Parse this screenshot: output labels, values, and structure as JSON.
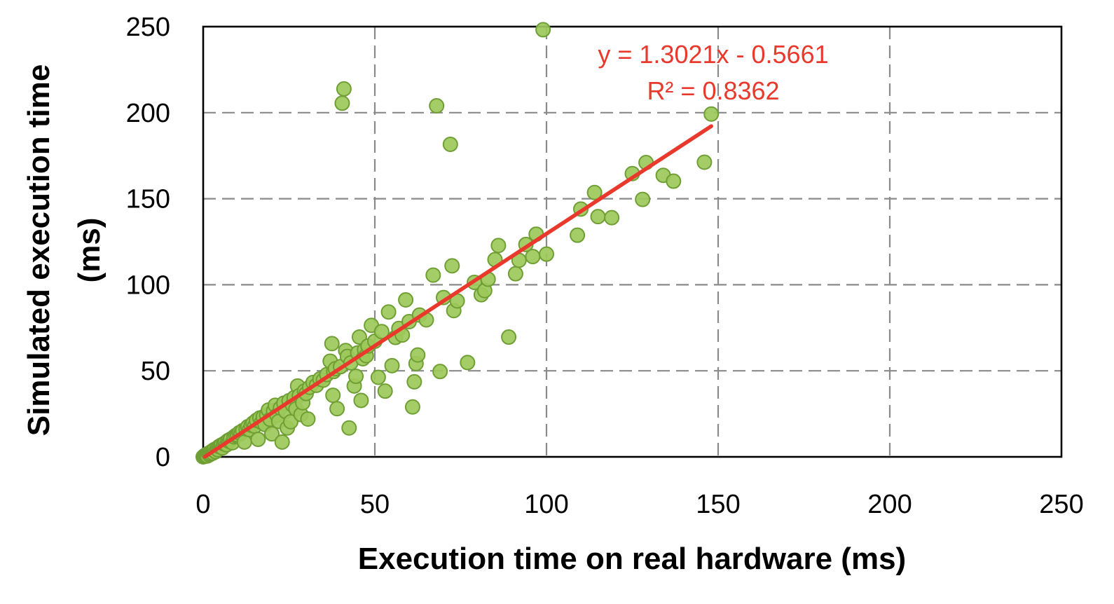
{
  "chart_data": {
    "type": "scatter",
    "xlabel": "Execution time on real hardware (ms)",
    "ylabel_lines": [
      "Simulated execution time",
      "(ms)"
    ],
    "xlim": [
      0,
      250
    ],
    "ylim": [
      0,
      250
    ],
    "x_ticks": [
      0,
      50,
      100,
      150,
      200,
      250
    ],
    "y_ticks": [
      0,
      50,
      100,
      150,
      200,
      250
    ],
    "x_tick_labels": [
      "0",
      "50",
      "100",
      "150",
      "200",
      "250"
    ],
    "y_tick_labels": [
      "0",
      "50",
      "100",
      "150",
      "200",
      "250"
    ],
    "grid": true,
    "marker_color": "#9cc95a",
    "trendline": {
      "slope": 1.3021,
      "intercept": -0.5661,
      "x_range": [
        0.5,
        148
      ],
      "color": "#e8392c",
      "equation_label": "y = 1.3021x - 0.5661",
      "r2_label": "R² = 0.8362"
    },
    "points": [
      [
        0,
        0
      ],
      [
        0.3,
        0.2
      ],
      [
        0.5,
        0.8
      ],
      [
        0.8,
        0.6
      ],
      [
        1,
        1.4
      ],
      [
        1.2,
        0.5
      ],
      [
        1.5,
        2
      ],
      [
        1.8,
        1.2
      ],
      [
        2,
        2.5
      ],
      [
        2.2,
        1.8
      ],
      [
        2.5,
        3.2
      ],
      [
        2.8,
        2.2
      ],
      [
        3,
        3.8
      ],
      [
        3.3,
        4.3
      ],
      [
        3.6,
        3
      ],
      [
        4,
        5
      ],
      [
        4.3,
        4.1
      ],
      [
        4.6,
        6
      ],
      [
        5,
        5.8
      ],
      [
        5.3,
        6.8
      ],
      [
        5.6,
        5.2
      ],
      [
        6,
        7.6
      ],
      [
        6.4,
        8.1
      ],
      [
        6.8,
        7
      ],
      [
        7.2,
        9.4
      ],
      [
        7.6,
        9
      ],
      [
        8,
        10.3
      ],
      [
        8.5,
        8.2
      ],
      [
        9,
        11.6
      ],
      [
        9.5,
        12.4
      ],
      [
        10,
        12.8
      ],
      [
        10.5,
        14
      ],
      [
        11,
        13.6
      ],
      [
        11.5,
        15.2
      ],
      [
        12,
        8.6
      ],
      [
        12.5,
        16.3
      ],
      [
        13,
        17.5
      ],
      [
        13.5,
        15.8
      ],
      [
        14,
        18.4
      ],
      [
        14.5,
        19.6
      ],
      [
        15,
        17.8
      ],
      [
        15.5,
        21.2
      ],
      [
        16,
        10.2
      ],
      [
        16.5,
        22.6
      ],
      [
        17,
        20
      ],
      [
        17.5,
        23.2
      ],
      [
        18,
        18.8
      ],
      [
        18.5,
        24.4
      ],
      [
        19,
        27.2
      ],
      [
        19.5,
        21.8
      ],
      [
        20,
        13.4
      ],
      [
        20.5,
        26.8
      ],
      [
        21,
        30
      ],
      [
        21.5,
        24.2
      ],
      [
        22,
        20.6
      ],
      [
        22.5,
        28.4
      ],
      [
        23,
        8.6
      ],
      [
        23.5,
        31.2
      ],
      [
        24,
        26.4
      ],
      [
        24.5,
        16.8
      ],
      [
        25,
        32.6
      ],
      [
        25.5,
        20.4
      ],
      [
        26,
        30.2
      ],
      [
        26.5,
        34.4
      ],
      [
        27,
        27.8
      ],
      [
        27.5,
        41.2
      ],
      [
        28,
        35.6
      ],
      [
        28.5,
        24.6
      ],
      [
        29,
        31.4
      ],
      [
        29.5,
        38.2
      ],
      [
        30,
        36.8
      ],
      [
        30.5,
        22
      ],
      [
        31,
        40.4
      ],
      [
        32,
        43.2
      ],
      [
        33,
        41.6
      ],
      [
        34,
        45.2
      ],
      [
        35,
        44.6
      ],
      [
        36,
        47.8
      ],
      [
        37,
        55.6
      ],
      [
        37.5,
        65.8
      ],
      [
        37.8,
        35.8
      ],
      [
        38,
        49.6
      ],
      [
        38.5,
        51.2
      ],
      [
        39,
        28
      ],
      [
        40,
        52.4
      ],
      [
        40.5,
        205.5
      ],
      [
        41,
        213.8
      ],
      [
        41.5,
        61.8
      ],
      [
        42,
        58.4
      ],
      [
        42.5,
        16.8
      ],
      [
        43,
        54.6
      ],
      [
        44,
        41.2
      ],
      [
        44.5,
        46.8
      ],
      [
        45,
        60.4
      ],
      [
        45.5,
        69.6
      ],
      [
        46,
        32.8
      ],
      [
        46.5,
        57
      ],
      [
        47,
        62.2
      ],
      [
        47.5,
        58.8
      ],
      [
        48,
        64.4
      ],
      [
        49,
        76.4
      ],
      [
        50,
        67.2
      ],
      [
        51,
        46.2
      ],
      [
        52,
        72.8
      ],
      [
        53,
        38.2
      ],
      [
        54,
        84.2
      ],
      [
        55,
        53
      ],
      [
        56,
        69.4
      ],
      [
        57,
        74.6
      ],
      [
        58,
        70.8
      ],
      [
        59,
        91.2
      ],
      [
        60,
        78.6
      ],
      [
        61,
        29
      ],
      [
        61.5,
        43.6
      ],
      [
        62,
        54.2
      ],
      [
        62.5,
        59.2
      ],
      [
        63,
        82.4
      ],
      [
        65,
        79.6
      ],
      [
        67,
        105.6
      ],
      [
        68,
        204
      ],
      [
        69,
        49.6
      ],
      [
        70,
        92.6
      ],
      [
        72,
        181.6
      ],
      [
        72.5,
        111
      ],
      [
        73,
        85
      ],
      [
        74,
        90.6
      ],
      [
        77,
        54.8
      ],
      [
        79,
        101.4
      ],
      [
        81,
        94.2
      ],
      [
        82,
        96.6
      ],
      [
        83,
        103.2
      ],
      [
        85,
        114.6
      ],
      [
        86,
        122.8
      ],
      [
        89,
        69.6
      ],
      [
        91,
        106.4
      ],
      [
        92,
        114.2
      ],
      [
        94,
        123.4
      ],
      [
        96,
        116.4
      ],
      [
        97,
        129.4
      ],
      [
        99,
        248.2
      ],
      [
        100,
        117.8
      ],
      [
        109,
        128.8
      ],
      [
        110,
        144
      ],
      [
        114,
        153.6
      ],
      [
        115,
        139.6
      ],
      [
        119,
        139
      ],
      [
        125,
        164.6
      ],
      [
        128,
        149.6
      ],
      [
        129,
        171
      ],
      [
        134,
        163.6
      ],
      [
        137,
        160.2
      ],
      [
        146,
        171.2
      ],
      [
        148,
        199.2
      ]
    ]
  }
}
